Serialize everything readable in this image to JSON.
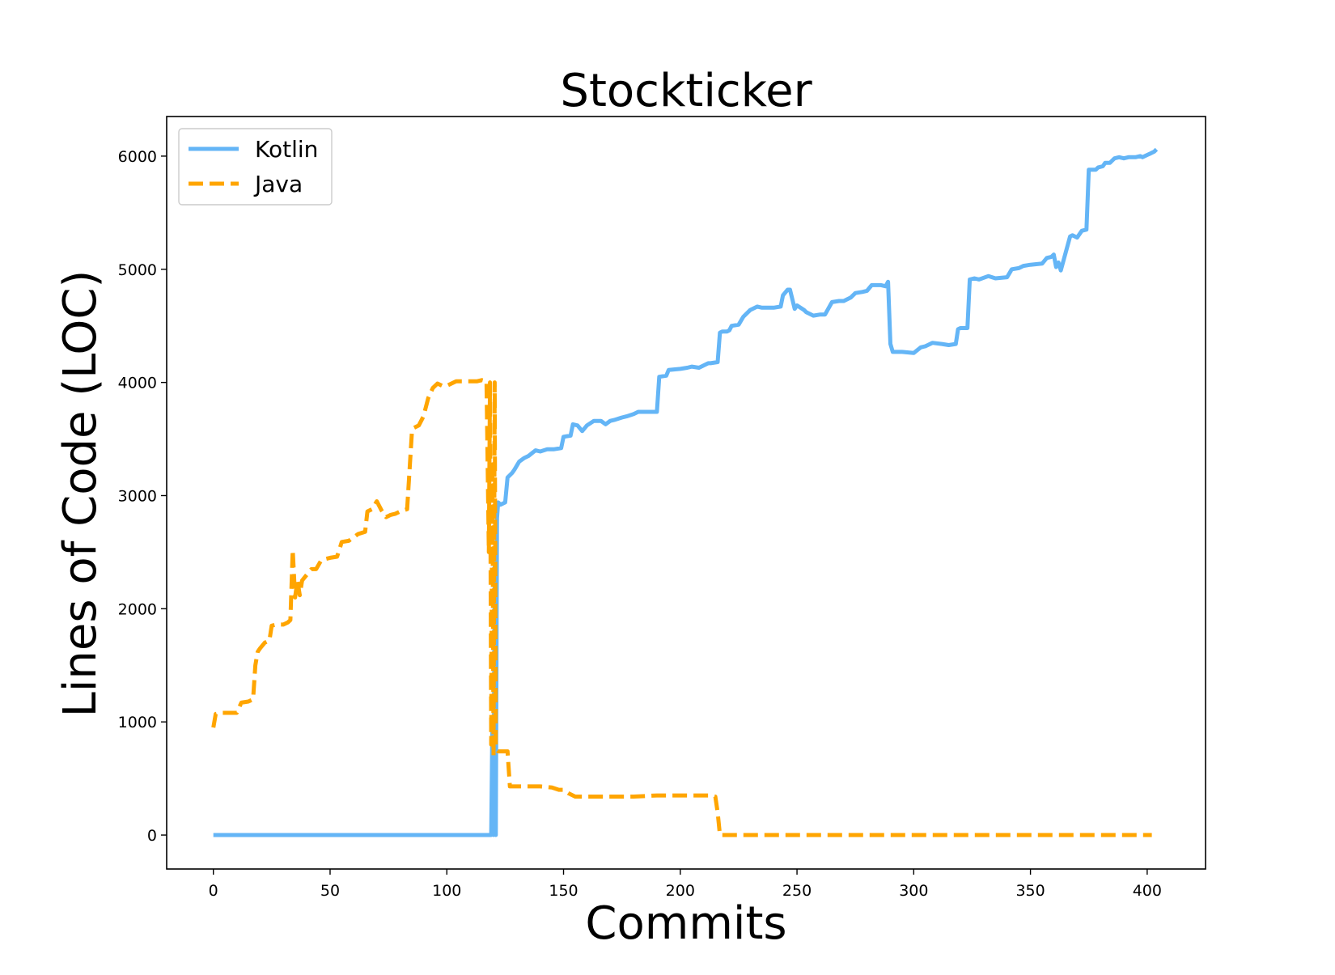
{
  "chart_data": {
    "type": "line",
    "title": "Stockticker",
    "xlabel": "Commits",
    "ylabel": "Lines of Code (LOC)",
    "xlim": [
      -20,
      425
    ],
    "ylim": [
      -300,
      6350
    ],
    "xticks": [
      0,
      50,
      100,
      150,
      200,
      250,
      300,
      350,
      400
    ],
    "yticks": [
      0,
      1000,
      2000,
      3000,
      4000,
      5000,
      6000
    ],
    "grid": false,
    "legend": {
      "position": "top-left"
    },
    "series": [
      {
        "name": "Kotlin",
        "color": "#64b5f6",
        "style": "solid",
        "x": [
          0,
          119,
          119.5,
          120,
          120.5,
          121,
          121.5,
          122,
          123,
          125,
          126,
          128,
          129,
          131,
          133,
          135,
          138,
          140,
          143,
          146,
          149,
          150,
          153,
          154,
          156,
          158,
          160,
          163,
          166,
          168,
          170,
          172,
          175,
          177,
          180,
          182,
          190,
          191,
          194,
          195,
          200,
          203,
          205,
          208,
          212,
          213,
          216,
          217,
          218,
          220,
          221,
          222,
          225,
          227,
          230,
          233,
          235,
          237,
          240,
          243,
          244,
          246,
          247,
          249,
          250,
          253,
          254,
          257,
          260,
          262,
          265,
          268,
          270,
          273,
          275,
          278,
          280,
          282,
          285,
          286,
          288,
          289,
          290,
          291,
          295,
          300,
          303,
          305,
          308,
          312,
          315,
          318,
          319,
          320,
          323,
          324,
          326,
          328,
          332,
          335,
          340,
          342,
          345,
          347,
          350,
          355,
          357,
          359,
          360,
          361,
          362,
          363,
          367,
          368,
          370,
          372,
          374,
          375,
          378,
          379,
          381,
          382,
          384,
          385,
          386,
          388,
          390,
          392,
          395,
          397,
          398,
          400,
          401,
          403,
          404
        ],
        "y": [
          0,
          0,
          950,
          0,
          2400,
          0,
          2800,
          2940,
          2920,
          2940,
          3160,
          3200,
          3230,
          3300,
          3330,
          3350,
          3400,
          3390,
          3410,
          3410,
          3420,
          3520,
          3530,
          3630,
          3620,
          3570,
          3620,
          3660,
          3660,
          3630,
          3660,
          3670,
          3690,
          3700,
          3720,
          3740,
          3740,
          4050,
          4060,
          4110,
          4120,
          4130,
          4140,
          4130,
          4170,
          4170,
          4180,
          4440,
          4450,
          4450,
          4460,
          4500,
          4510,
          4580,
          4640,
          4670,
          4660,
          4660,
          4660,
          4670,
          4770,
          4820,
          4820,
          4650,
          4680,
          4640,
          4620,
          4590,
          4600,
          4600,
          4710,
          4720,
          4720,
          4750,
          4790,
          4800,
          4810,
          4860,
          4860,
          4860,
          4850,
          4890,
          4340,
          4270,
          4270,
          4260,
          4310,
          4320,
          4350,
          4340,
          4330,
          4340,
          4470,
          4480,
          4480,
          4910,
          4920,
          4910,
          4940,
          4920,
          4930,
          5000,
          5010,
          5030,
          5040,
          5050,
          5100,
          5110,
          5130,
          5020,
          5060,
          4990,
          5290,
          5300,
          5280,
          5340,
          5350,
          5880,
          5880,
          5900,
          5910,
          5940,
          5940,
          5960,
          5980,
          5990,
          5980,
          5990,
          5990,
          6000,
          5990,
          6010,
          6020,
          6040,
          6060
        ]
      },
      {
        "name": "Java",
        "color": "#ffa500",
        "style": "dashed",
        "x": [
          0,
          1,
          3,
          6,
          8,
          10,
          12,
          15,
          17,
          18,
          19,
          20,
          22,
          24,
          25,
          27,
          30,
          32,
          33,
          34,
          35,
          36,
          37,
          38,
          40,
          42,
          44,
          46,
          48,
          50,
          53,
          55,
          58,
          60,
          62,
          65,
          66,
          68,
          70,
          72,
          74,
          76,
          78,
          80,
          83,
          85,
          86,
          88,
          90,
          92,
          94,
          96,
          98,
          100,
          102,
          104,
          107,
          110,
          113,
          115,
          117,
          118,
          118.5,
          119,
          119.5,
          120,
          120.5,
          121,
          121.5,
          122,
          123,
          126,
          127,
          128,
          130,
          135,
          140,
          145,
          148,
          150,
          152,
          155,
          156,
          160,
          170,
          180,
          190,
          200,
          210,
          213,
          215,
          216,
          217,
          220,
          250,
          300,
          350,
          400,
          402
        ],
        "y": [
          950,
          1070,
          1080,
          1080,
          1080,
          1080,
          1170,
          1180,
          1200,
          1500,
          1620,
          1650,
          1700,
          1720,
          1850,
          1860,
          1860,
          1880,
          1900,
          2520,
          2100,
          2250,
          2120,
          2250,
          2300,
          2350,
          2350,
          2420,
          2440,
          2450,
          2460,
          2590,
          2600,
          2630,
          2660,
          2680,
          2860,
          2880,
          2950,
          2870,
          2810,
          2830,
          2840,
          2860,
          2880,
          3550,
          3600,
          3620,
          3700,
          3860,
          3950,
          3990,
          3970,
          3970,
          3990,
          4010,
          4010,
          4010,
          4010,
          4020,
          4010,
          2500,
          4000,
          800,
          3300,
          700,
          4000,
          800,
          750,
          740,
          740,
          740,
          430,
          430,
          430,
          430,
          430,
          420,
          400,
          400,
          370,
          340,
          340,
          340,
          340,
          340,
          350,
          350,
          350,
          350,
          340,
          200,
          0,
          0,
          0,
          0,
          0,
          0,
          0
        ]
      }
    ]
  }
}
